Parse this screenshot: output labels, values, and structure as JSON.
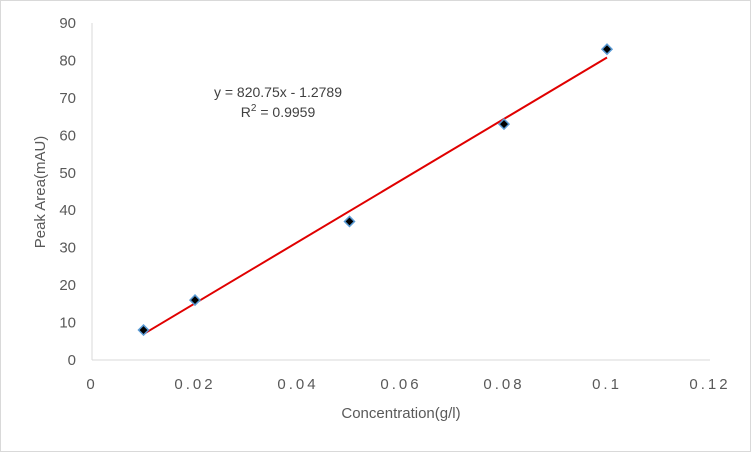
{
  "chart_data": {
    "type": "scatter",
    "title": "",
    "xlabel": "Concentration(g/l)",
    "ylabel": "Peak Area(mAU)",
    "xlim": [
      0,
      0.12
    ],
    "ylim": [
      0,
      90
    ],
    "x_ticks": [
      "0",
      "0.02",
      "0.04",
      "0.06",
      "0.08",
      "0.1",
      "0.12"
    ],
    "y_ticks": [
      "0",
      "10",
      "20",
      "30",
      "40",
      "50",
      "60",
      "70",
      "80",
      "90"
    ],
    "grid": false,
    "legend": "none",
    "series": [
      {
        "x": [
          0.01,
          0.02,
          0.05,
          0.08,
          0.1
        ],
        "y": [
          8,
          16,
          37,
          63,
          83
        ],
        "marker": "diamond",
        "marker_fill": "#000000",
        "marker_edge": "#5b9bd5"
      }
    ],
    "trendline": {
      "slope": 820.75,
      "intercept": -1.2789,
      "color": "#e00000",
      "equation": "y = 820.75x - 1.2789",
      "r2_prefix": "R",
      "r2_sup": "2",
      "r2_value": " = 0.9959"
    },
    "colors": {
      "axis": "#d9d9d9",
      "text": "#595959"
    }
  }
}
